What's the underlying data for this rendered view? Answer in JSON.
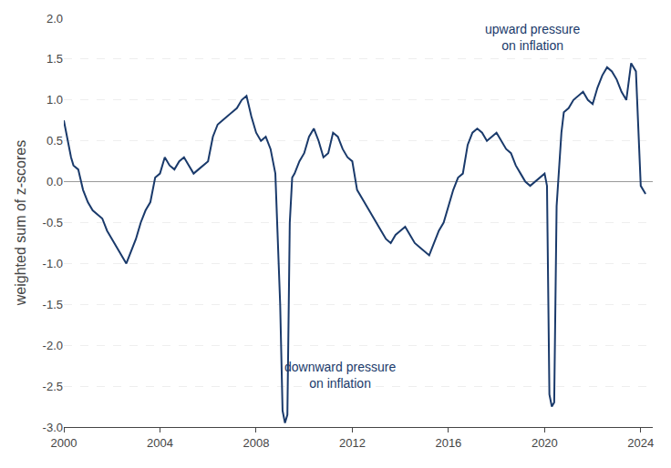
{
  "chart_data": {
    "type": "line",
    "ylabel": "weighted sum of z-scores",
    "color": "#1a3a6b",
    "grid": true,
    "xlim": [
      2000,
      2024.5
    ],
    "xticks": [
      2000,
      2004,
      2008,
      2012,
      2016,
      2020,
      2024
    ],
    "ylim": [
      -3.0,
      2.0
    ],
    "yticks": [
      {
        "value": -3.0,
        "label": "-3.0"
      },
      -2.5,
      {
        "value": -2.0,
        "label": "-2.0"
      },
      -1.5,
      {
        "value": -1.0,
        "label": "-1.0"
      },
      -0.5,
      {
        "value": 0.0,
        "label": "0.0"
      },
      0.5,
      {
        "value": 1.0,
        "label": "1.0"
      },
      1.5,
      {
        "value": 2.0,
        "label": "2.0"
      }
    ],
    "annotations": [
      {
        "text": "upward pressure\non inflation",
        "x": 2019.5,
        "y": 1.55
      },
      {
        "text": "downward pressure\non inflation",
        "x": 2011.5,
        "y": -2.15
      }
    ],
    "x": [
      2000.0,
      2000.1,
      2000.2,
      2000.3,
      2000.4,
      2000.6,
      2000.8,
      2001.0,
      2001.2,
      2001.4,
      2001.6,
      2001.8,
      2002.0,
      2002.2,
      2002.4,
      2002.6,
      2002.8,
      2003.0,
      2003.2,
      2003.4,
      2003.6,
      2003.8,
      2004.0,
      2004.2,
      2004.4,
      2004.6,
      2004.8,
      2005.0,
      2005.2,
      2005.4,
      2005.6,
      2005.8,
      2006.0,
      2006.2,
      2006.4,
      2006.6,
      2006.8,
      2007.0,
      2007.2,
      2007.4,
      2007.6,
      2007.8,
      2008.0,
      2008.2,
      2008.4,
      2008.6,
      2008.8,
      2009.0,
      2009.1,
      2009.2,
      2009.3,
      2009.4,
      2009.5,
      2009.6,
      2009.8,
      2010.0,
      2010.2,
      2010.4,
      2010.6,
      2010.8,
      2011.0,
      2011.2,
      2011.4,
      2011.6,
      2011.8,
      2012.0,
      2012.2,
      2012.4,
      2012.6,
      2012.8,
      2013.0,
      2013.2,
      2013.4,
      2013.6,
      2013.8,
      2014.0,
      2014.2,
      2014.4,
      2014.6,
      2014.8,
      2015.0,
      2015.2,
      2015.4,
      2015.6,
      2015.8,
      2016.0,
      2016.2,
      2016.4,
      2016.6,
      2016.8,
      2017.0,
      2017.2,
      2017.4,
      2017.6,
      2017.8,
      2018.0,
      2018.2,
      2018.4,
      2018.6,
      2018.8,
      2019.0,
      2019.2,
      2019.4,
      2019.6,
      2019.8,
      2020.0,
      2020.1,
      2020.2,
      2020.3,
      2020.4,
      2020.5,
      2020.6,
      2020.7,
      2020.8,
      2021.0,
      2021.2,
      2021.4,
      2021.6,
      2021.8,
      2022.0,
      2022.2,
      2022.4,
      2022.6,
      2022.8,
      2023.0,
      2023.2,
      2023.4,
      2023.6,
      2023.8,
      2024.0,
      2024.2
    ],
    "values": [
      0.75,
      0.6,
      0.45,
      0.3,
      0.2,
      0.15,
      -0.1,
      -0.25,
      -0.35,
      -0.4,
      -0.45,
      -0.6,
      -0.7,
      -0.8,
      -0.9,
      -1.0,
      -0.85,
      -0.7,
      -0.5,
      -0.35,
      -0.25,
      0.05,
      0.1,
      0.3,
      0.2,
      0.15,
      0.25,
      0.3,
      0.2,
      0.1,
      0.15,
      0.2,
      0.25,
      0.55,
      0.7,
      0.75,
      0.8,
      0.85,
      0.9,
      1.0,
      1.05,
      0.8,
      0.6,
      0.5,
      0.55,
      0.4,
      0.1,
      -1.5,
      -2.8,
      -2.95,
      -2.85,
      -0.5,
      0.05,
      0.1,
      0.25,
      0.35,
      0.55,
      0.65,
      0.5,
      0.3,
      0.35,
      0.6,
      0.55,
      0.4,
      0.3,
      0.25,
      -0.1,
      -0.2,
      -0.3,
      -0.4,
      -0.5,
      -0.6,
      -0.7,
      -0.75,
      -0.65,
      -0.6,
      -0.55,
      -0.65,
      -0.75,
      -0.8,
      -0.85,
      -0.9,
      -0.75,
      -0.6,
      -0.5,
      -0.3,
      -0.1,
      0.05,
      0.1,
      0.45,
      0.6,
      0.65,
      0.6,
      0.5,
      0.55,
      0.6,
      0.5,
      0.4,
      0.35,
      0.2,
      0.1,
      0.0,
      -0.05,
      0.0,
      0.05,
      0.1,
      -0.05,
      -2.6,
      -2.75,
      -2.7,
      -0.3,
      0.2,
      0.6,
      0.85,
      0.9,
      1.0,
      1.05,
      1.1,
      1.0,
      0.95,
      1.15,
      1.3,
      1.4,
      1.35,
      1.25,
      1.1,
      1.0,
      1.45,
      1.35,
      -0.05,
      -0.15
    ]
  }
}
